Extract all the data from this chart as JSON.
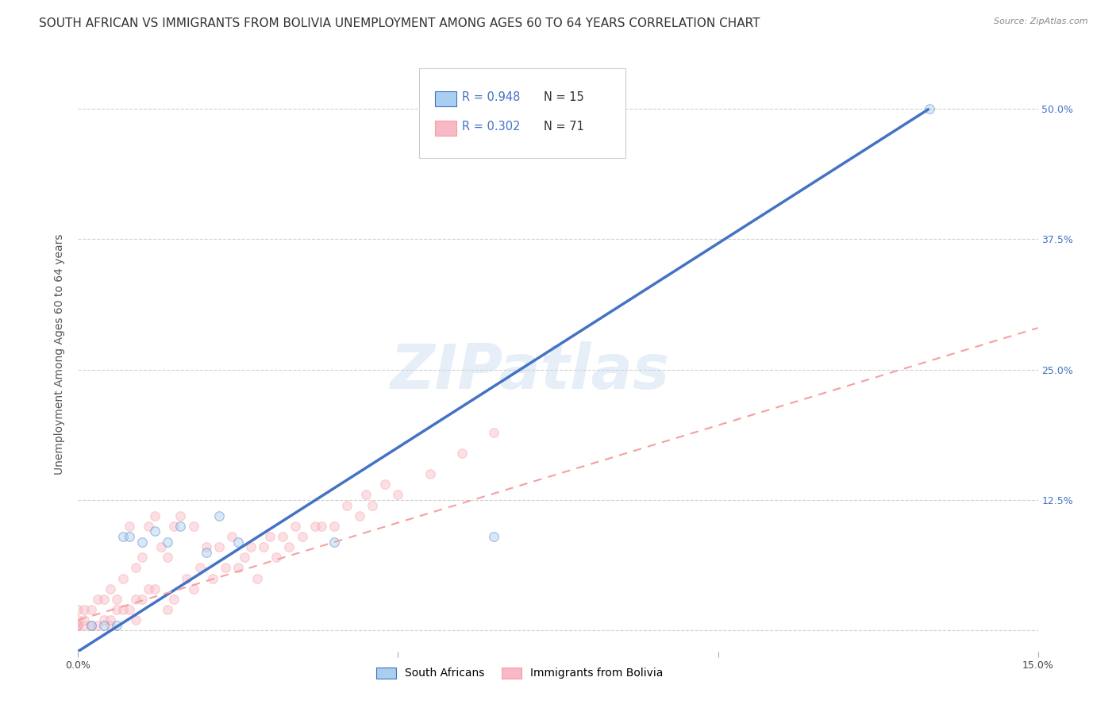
{
  "title": "SOUTH AFRICAN VS IMMIGRANTS FROM BOLIVIA UNEMPLOYMENT AMONG AGES 60 TO 64 YEARS CORRELATION CHART",
  "source": "Source: ZipAtlas.com",
  "ylabel": "Unemployment Among Ages 60 to 64 years",
  "xlim": [
    0.0,
    0.15
  ],
  "ylim": [
    -0.02,
    0.55
  ],
  "xticks": [
    0.0,
    0.05,
    0.1,
    0.15
  ],
  "xtick_labels": [
    "0.0%",
    "",
    "",
    "15.0%"
  ],
  "ytick_labels_right": [
    "50.0%",
    "37.5%",
    "25.0%",
    "12.5%",
    ""
  ],
  "ytick_positions_right": [
    0.5,
    0.375,
    0.25,
    0.125,
    0.0
  ],
  "legend_entry1_r": "R = 0.948",
  "legend_entry1_n": "N = 15",
  "legend_entry2_r": "R = 0.302",
  "legend_entry2_n": "N = 71",
  "legend_color1": "#A8CFEF",
  "legend_color2": "#F9B8C5",
  "watermark": "ZIPatlas",
  "south_african_x": [
    0.002,
    0.004,
    0.006,
    0.007,
    0.008,
    0.01,
    0.012,
    0.014,
    0.016,
    0.02,
    0.022,
    0.025,
    0.04,
    0.065,
    0.133
  ],
  "south_african_y": [
    0.005,
    0.005,
    0.005,
    0.09,
    0.09,
    0.085,
    0.095,
    0.085,
    0.1,
    0.075,
    0.11,
    0.085,
    0.085,
    0.09,
    0.5
  ],
  "bolivia_x": [
    0.0,
    0.0,
    0.0,
    0.0,
    0.0,
    0.0,
    0.001,
    0.001,
    0.001,
    0.002,
    0.002,
    0.003,
    0.003,
    0.004,
    0.004,
    0.005,
    0.005,
    0.005,
    0.006,
    0.006,
    0.007,
    0.007,
    0.008,
    0.008,
    0.009,
    0.009,
    0.009,
    0.01,
    0.01,
    0.011,
    0.011,
    0.012,
    0.012,
    0.013,
    0.014,
    0.014,
    0.015,
    0.015,
    0.016,
    0.017,
    0.018,
    0.018,
    0.019,
    0.02,
    0.021,
    0.022,
    0.023,
    0.024,
    0.025,
    0.026,
    0.027,
    0.028,
    0.029,
    0.03,
    0.031,
    0.032,
    0.033,
    0.034,
    0.035,
    0.037,
    0.038,
    0.04,
    0.042,
    0.044,
    0.045,
    0.046,
    0.048,
    0.05,
    0.055,
    0.06,
    0.065
  ],
  "bolivia_y": [
    0.005,
    0.005,
    0.005,
    0.005,
    0.01,
    0.02,
    0.005,
    0.01,
    0.02,
    0.005,
    0.02,
    0.005,
    0.03,
    0.01,
    0.03,
    0.005,
    0.01,
    0.04,
    0.02,
    0.03,
    0.02,
    0.05,
    0.02,
    0.1,
    0.01,
    0.03,
    0.06,
    0.03,
    0.07,
    0.04,
    0.1,
    0.04,
    0.11,
    0.08,
    0.02,
    0.07,
    0.03,
    0.1,
    0.11,
    0.05,
    0.04,
    0.1,
    0.06,
    0.08,
    0.05,
    0.08,
    0.06,
    0.09,
    0.06,
    0.07,
    0.08,
    0.05,
    0.08,
    0.09,
    0.07,
    0.09,
    0.08,
    0.1,
    0.09,
    0.1,
    0.1,
    0.1,
    0.12,
    0.11,
    0.13,
    0.12,
    0.14,
    0.13,
    0.15,
    0.17,
    0.19
  ],
  "blue_line_x": [
    0.0,
    0.133
  ],
  "blue_line_y": [
    -0.02,
    0.5
  ],
  "pink_line_x": [
    0.0,
    0.15
  ],
  "pink_line_y": [
    0.01,
    0.29
  ],
  "blue_line_color": "#4472C4",
  "pink_line_color": "#F4A0A0",
  "grid_color": "#CCCCCC",
  "background_color": "#FFFFFF",
  "title_fontsize": 11,
  "axis_label_fontsize": 10,
  "tick_fontsize": 9,
  "scatter_size": 70,
  "scatter_alpha": 0.45
}
